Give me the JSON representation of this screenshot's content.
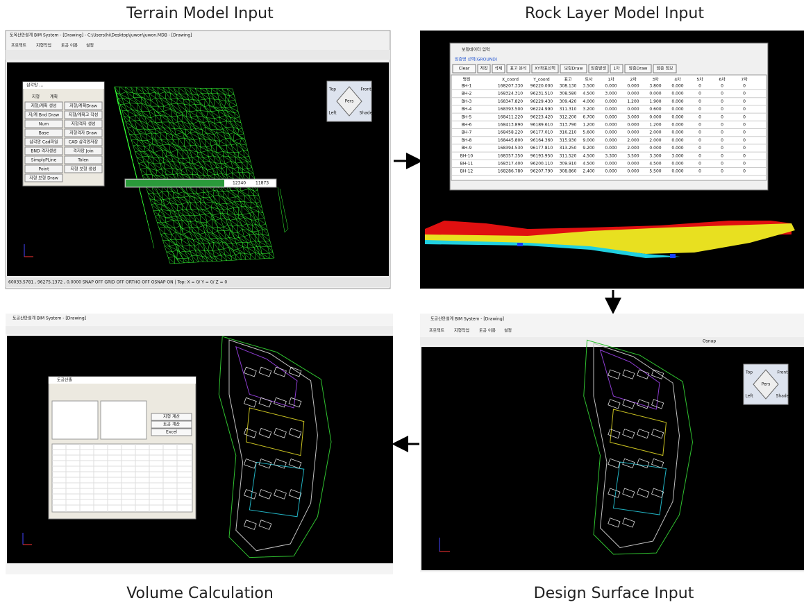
{
  "figure": {
    "panels": [
      {
        "caption": "Terrain Model Input",
        "window_title": "토목산안설계 BIM System - [Drawing] - C:\\Users\\hi\\Desktop\\juwon\\juwon.MDB - [Drawing]",
        "menu": [
          "프로젝트",
          "지형작업",
          "토공 이용",
          "설정"
        ],
        "status": "60033.5781 , 96275.1372 , 0.0000     SNAP OFF  GRID OFF  ORTHO OFF  OSNAP ON  | Top: X = 0/ Y = 0/ Z = 0",
        "view_cube": [
          "Top",
          "Front",
          "Pers",
          "Left",
          "Shade"
        ],
        "progress": [
          "12340",
          "11873"
        ],
        "dialog": {
          "title": "삼각망 ...",
          "radio": [
            "지형",
            "계획"
          ],
          "buttons": [
            "지형/계획 생성",
            "지형/계획Draw",
            "지/계 Bnd Draw",
            "지형/계획고 작성",
            "Num",
            "지형격자 생성",
            "Base",
            "지형격자 Draw",
            "삼각망 Cad파일",
            "CAD 삼각망저장",
            "BND 격자생성",
            "격자망 Join",
            "SimplyPLine",
            "Tolen",
            "Point",
            "지형 보형 생성",
            "지형 보형 Draw"
          ]
        }
      },
      {
        "caption": "Rock Layer Model Input",
        "window_title": "보링데이터 입력",
        "layer_label": "암층명 선택(GROUND)",
        "buttons": [
          "Clear",
          "저장",
          "삭제",
          "표고 분석",
          "XY좌표선택",
          "보링Draw",
          "암층발생",
          "1차",
          "암층Draw",
          "암층 정보"
        ],
        "table": {
          "header": [
            "명칭",
            "X_coord",
            "Y_coord",
            "표고",
            "토사",
            "1차",
            "2차",
            "3차",
            "4차",
            "5차",
            "6차",
            "7차"
          ],
          "rows": [
            [
              "BH-1",
              "168207.330",
              "96220.000",
              "308.130",
              "3.500",
              "0.000",
              "0.000",
              "3.800",
              "0.000",
              "0",
              "0",
              "0"
            ],
            [
              "BH-2",
              "168324.310",
              "96231.510",
              "308.580",
              "4.500",
              "3.000",
              "0.000",
              "0.000",
              "0.000",
              "0",
              "0",
              "0"
            ],
            [
              "BH-3",
              "168347.820",
              "96229.430",
              "309.420",
              "4.000",
              "0.000",
              "1.200",
              "1.900",
              "0.000",
              "0",
              "0",
              "0"
            ],
            [
              "BH-4",
              "168393.500",
              "96224.990",
              "311.310",
              "3.200",
              "0.000",
              "0.000",
              "0.600",
              "0.000",
              "0",
              "0",
              "0"
            ],
            [
              "BH-5",
              "168411.220",
              "96223.420",
              "312.200",
              "6.700",
              "0.000",
              "3.000",
              "0.000",
              "0.000",
              "0",
              "0",
              "0"
            ],
            [
              "BH-6",
              "168413.890",
              "96189.610",
              "313.790",
              "1.200",
              "0.000",
              "0.000",
              "1.200",
              "0.000",
              "0",
              "0",
              "0"
            ],
            [
              "BH-7",
              "168458.220",
              "96177.010",
              "316.210",
              "5.600",
              "0.000",
              "0.000",
              "2.000",
              "0.000",
              "0",
              "0",
              "0"
            ],
            [
              "BH-8",
              "168445.800",
              "96164.360",
              "315.930",
              "9.000",
              "0.000",
              "2.000",
              "2.000",
              "0.000",
              "0",
              "0",
              "0"
            ],
            [
              "BH-9",
              "168394.530",
              "96177.810",
              "313.250",
              "9.200",
              "0.000",
              "2.000",
              "0.000",
              "0.000",
              "0",
              "0",
              "0"
            ],
            [
              "BH-10",
              "168357.350",
              "96193.950",
              "311.520",
              "4.500",
              "3.300",
              "3.500",
              "3.300",
              "3.000",
              "0",
              "0",
              "0"
            ],
            [
              "BH-11",
              "168317.400",
              "96200.110",
              "309.910",
              "4.500",
              "0.000",
              "0.000",
              "4.500",
              "0.000",
              "0",
              "0",
              "0"
            ],
            [
              "BH-12",
              "168286.780",
              "96207.790",
              "308.860",
              "2.400",
              "0.000",
              "0.000",
              "5.500",
              "0.000",
              "0",
              "0",
              "0"
            ]
          ]
        }
      },
      {
        "caption": "Design Surface Input",
        "window_title": "토공산안설계 BIM System - [Drawing]",
        "menu": [
          "프로젝트",
          "지형작업",
          "토공 이용",
          "설정"
        ],
        "view_cube": [
          "Top",
          "Front",
          "Pers",
          "Left",
          "Shade"
        ],
        "osnap": "Osnap"
      },
      {
        "caption": "Volume Calculation",
        "window_title": "토공산안설계 BIM System - [Drawing]",
        "dialog": {
          "title": "토공산출",
          "buttons": [
            "지형 계산",
            "토공 계산",
            "Excel"
          ]
        }
      }
    ]
  }
}
